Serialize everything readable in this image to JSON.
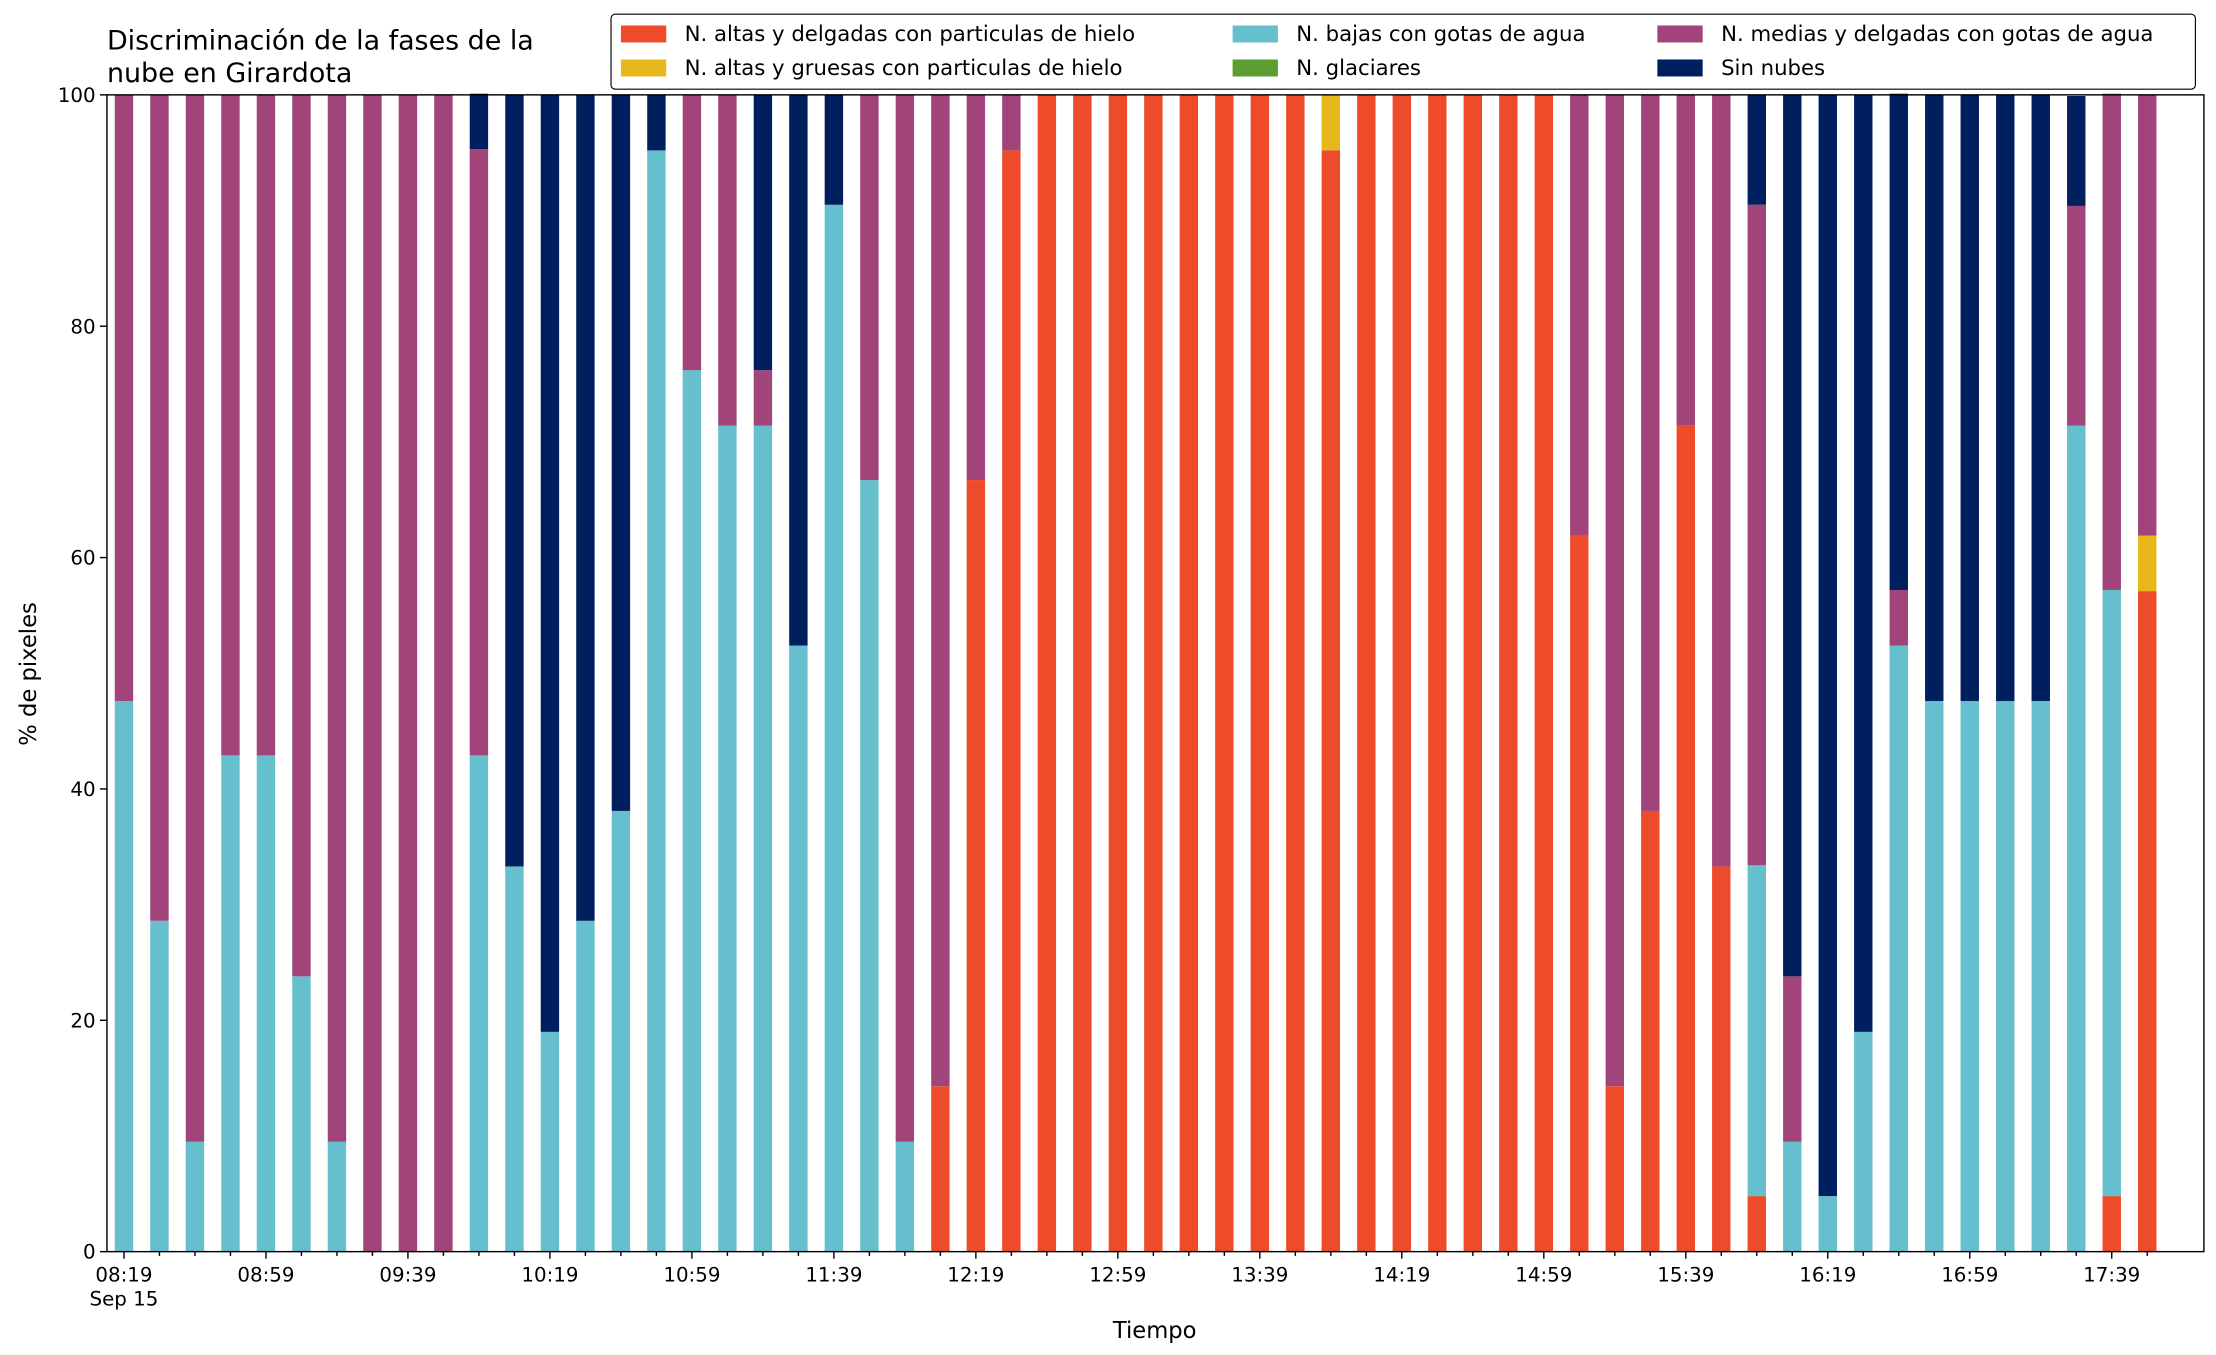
{
  "chart_data": {
    "type": "stacked_bar",
    "title": [
      "Discriminación de la fases de la",
      "nube en Girardota"
    ],
    "x_label": "Tiempo",
    "y_label": "% de pixeles",
    "x_sublabel": "Sep 15",
    "categories": [
      "08:19",
      null,
      null,
      null,
      "08:59",
      null,
      null,
      null,
      "09:39",
      null,
      null,
      null,
      "10:19",
      null,
      null,
      null,
      "10:59",
      null,
      null,
      null,
      "11:39",
      null,
      null,
      null,
      "12:19",
      null,
      null,
      null,
      "12:59",
      null,
      null,
      null,
      "13:39",
      null,
      null,
      null,
      "14:19",
      null,
      null,
      null,
      "14:59",
      null,
      null,
      null,
      "15:39",
      null,
      null,
      null,
      "16:19",
      null,
      null,
      null,
      "16:59",
      null,
      null,
      null,
      "17:39",
      null
    ],
    "ylim": [
      0,
      100
    ],
    "yticks": [
      0,
      20,
      40,
      60,
      80,
      100
    ],
    "legend": "top-right",
    "series": [
      {
        "name": "N. altas y delgadas con particulas de hielo",
        "color": "#ee4b2b",
        "values": [
          0,
          0,
          0,
          0,
          0,
          0,
          0,
          0,
          0,
          0,
          0,
          0,
          0,
          0,
          0,
          0,
          0,
          0,
          0,
          0,
          0,
          0,
          0,
          14.3,
          66.7,
          95.2,
          100,
          100,
          100,
          100,
          100,
          100,
          100,
          100,
          95.2,
          100,
          100,
          100,
          100,
          100,
          100,
          61.9,
          14.3,
          38.1,
          71.4,
          33.3,
          4.8,
          0,
          0,
          0,
          0,
          0,
          0,
          0,
          0,
          0,
          4.8,
          57.1
        ]
      },
      {
        "name": "N. altas y gruesas con particulas de hielo",
        "color": "#e6b81c",
        "values": [
          0,
          0,
          0,
          0,
          0,
          0,
          0,
          0,
          0,
          0,
          0,
          0,
          0,
          0,
          0,
          0,
          0,
          0,
          0,
          0,
          0,
          0,
          0,
          0,
          0,
          0,
          0,
          0,
          0,
          0,
          0,
          0,
          0,
          0,
          4.8,
          0,
          0,
          0,
          0,
          0,
          0,
          0,
          0,
          0,
          0,
          0,
          0,
          0,
          0,
          0,
          0,
          0,
          0,
          0,
          0,
          0,
          0,
          4.8
        ]
      },
      {
        "name": "N. bajas con gotas de agua",
        "color": "#66bfcc",
        "values": [
          47.6,
          28.6,
          9.5,
          42.9,
          42.9,
          23.8,
          9.5,
          0,
          0,
          0,
          42.9,
          33.3,
          19.0,
          28.6,
          38.1,
          95.2,
          76.2,
          71.4,
          71.4,
          52.4,
          90.5,
          66.7,
          9.5,
          0,
          0,
          0,
          0,
          0,
          0,
          0,
          0,
          0,
          0,
          0,
          0,
          0,
          0,
          0,
          0,
          0,
          0,
          0,
          0,
          0,
          0,
          0,
          28.6,
          9.5,
          4.8,
          19.0,
          52.4,
          47.6,
          47.6,
          47.6,
          47.6,
          71.4,
          52.4,
          0
        ]
      },
      {
        "name": "N. glaciares",
        "color": "#5a9e2f",
        "values": [
          0,
          0,
          0,
          0,
          0,
          0,
          0,
          0,
          0,
          0,
          0,
          0,
          0,
          0,
          0,
          0,
          0,
          0,
          0,
          0,
          0,
          0,
          0,
          0,
          0,
          0,
          0,
          0,
          0,
          0,
          0,
          0,
          0,
          0,
          0,
          0,
          0,
          0,
          0,
          0,
          0,
          0,
          0,
          0,
          0,
          0,
          0,
          0,
          0,
          0,
          0,
          0,
          0,
          0,
          0,
          0,
          0,
          0
        ]
      },
      {
        "name": "N. medias y delgadas con gotas de agua",
        "color": "#a0447a",
        "values": [
          52.4,
          71.4,
          90.5,
          57.1,
          57.1,
          76.2,
          90.5,
          100,
          100,
          100,
          52.4,
          0,
          0,
          0,
          0,
          0,
          23.8,
          28.6,
          4.8,
          0,
          0,
          33.3,
          90.5,
          85.7,
          33.3,
          4.8,
          0,
          0,
          0,
          0,
          0,
          0,
          0,
          0,
          0,
          0,
          0,
          0,
          0,
          0,
          0,
          38.1,
          85.7,
          61.9,
          28.6,
          66.7,
          57.1,
          14.3,
          0,
          0,
          4.8,
          0,
          0,
          0,
          0,
          19.0,
          42.9,
          38.1
        ]
      },
      {
        "name": "Sin nubes",
        "color": "#001f5f",
        "values": [
          0,
          0,
          0,
          0,
          0,
          0,
          0,
          0,
          0,
          0,
          4.8,
          66.7,
          81.0,
          71.4,
          61.9,
          4.8,
          0,
          0,
          23.8,
          47.6,
          9.5,
          0,
          0,
          0,
          0,
          0,
          0,
          0,
          0,
          0,
          0,
          0,
          0,
          0,
          0,
          0,
          0,
          0,
          0,
          0,
          0,
          0,
          0,
          0,
          0,
          0,
          9.5,
          76.2,
          95.2,
          81.0,
          42.9,
          52.4,
          52.4,
          52.4,
          52.4,
          9.5,
          0,
          0
        ]
      }
    ]
  }
}
